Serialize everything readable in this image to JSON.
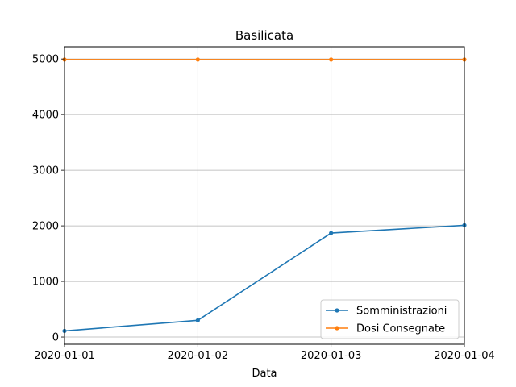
{
  "chart_data": {
    "type": "line",
    "title": "Basilicata",
    "xlabel": "Data",
    "ylabel": "",
    "x": [
      "2020-01-01",
      "2020-01-02",
      "2020-01-03",
      "2020-01-04"
    ],
    "xlim": [
      "2020-01-01",
      "2020-01-04"
    ],
    "ylim": [
      -130,
      5220
    ],
    "yticks": [
      0,
      1000,
      2000,
      3000,
      4000,
      5000
    ],
    "grid": true,
    "legend_position": "lower-right",
    "series": [
      {
        "name": "Somministrazioni",
        "color": "#1f77b4",
        "values": [
          110,
          300,
          1870,
          2010
        ]
      },
      {
        "name": "Dosi Consegnate",
        "color": "#ff7f0e",
        "values": [
          4990,
          4990,
          4990,
          4990
        ]
      }
    ]
  }
}
